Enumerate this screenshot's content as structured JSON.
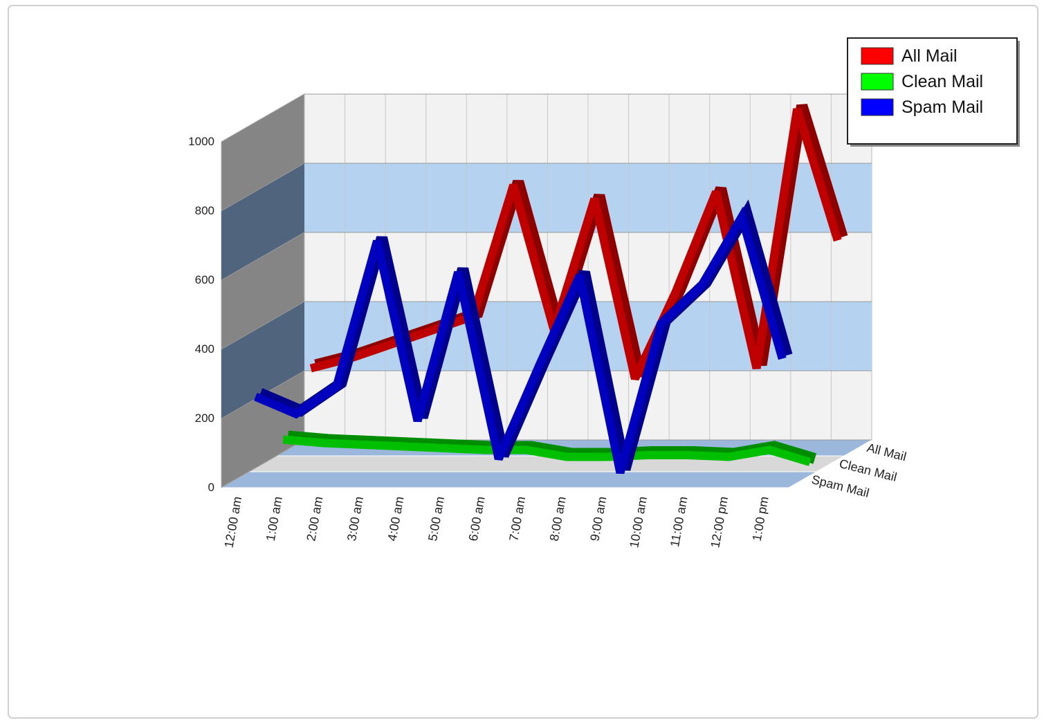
{
  "chart_data": {
    "type": "line3d",
    "categories": [
      "12:00 am",
      "1:00 am",
      "2:00 am",
      "3:00 am",
      "4:00 am",
      "5:00 am",
      "6:00 am",
      "7:00 am",
      "8:00 am",
      "9:00 am",
      "10:00 am",
      "11:00 am",
      "12:00 pm",
      "1:00 pm"
    ],
    "series": [
      {
        "name": "All Mail",
        "color": "#ff0000",
        "values": [
          230,
          260,
          300,
          340,
          380,
          760,
          340,
          720,
          200,
          450,
          740,
          230,
          980,
          600
        ]
      },
      {
        "name": "Clean Mail",
        "color": "#00ff00",
        "values": [
          70,
          60,
          55,
          50,
          45,
          40,
          40,
          20,
          20,
          25,
          25,
          20,
          40,
          5
        ]
      },
      {
        "name": "Spam Mail",
        "color": "#0000ff",
        "values": [
          240,
          190,
          270,
          690,
          170,
          600,
          60,
          330,
          590,
          20,
          450,
          560,
          760,
          350
        ]
      }
    ],
    "ylim": [
      0,
      1000
    ],
    "yticks": [
      0,
      200,
      400,
      600,
      800,
      1000
    ],
    "grid": true,
    "legend": "top-right"
  }
}
